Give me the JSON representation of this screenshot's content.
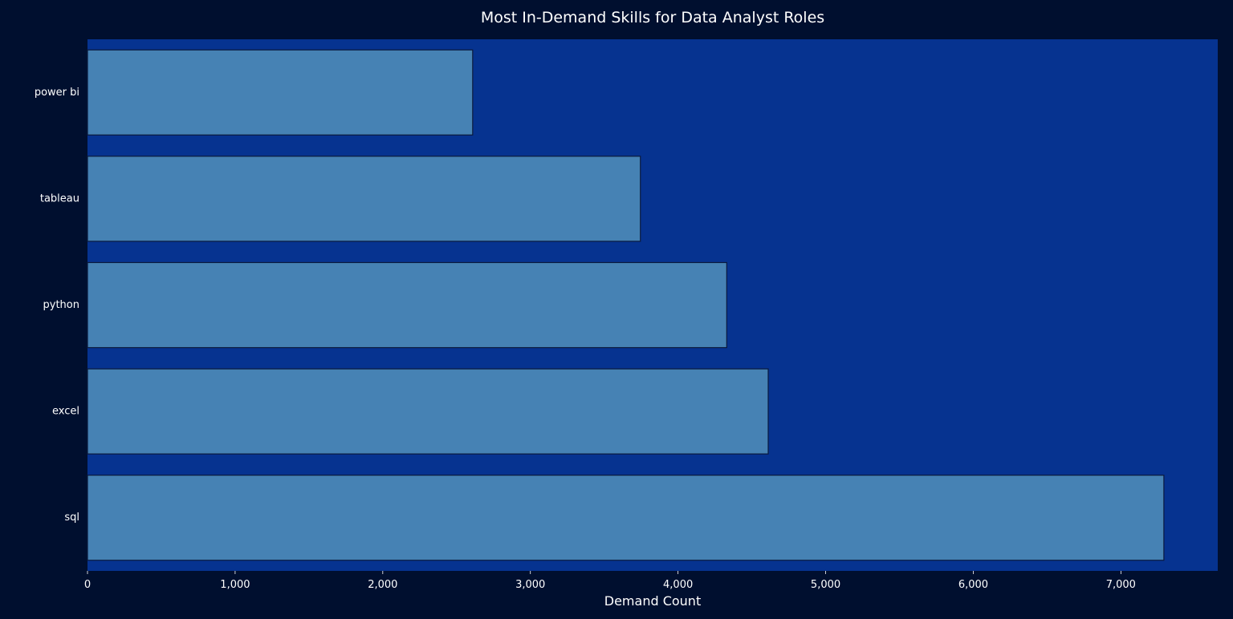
{
  "chart_data": {
    "type": "bar",
    "orientation": "horizontal",
    "title": "Most In-Demand Skills for Data Analyst Roles",
    "xlabel": "Demand Count",
    "ylabel": "",
    "categories": [
      "power bi",
      "tableau",
      "python",
      "excel",
      "sql"
    ],
    "values": [
      2609,
      3745,
      4330,
      4611,
      7291
    ],
    "xlim": [
      0,
      7656
    ],
    "xticks": [
      0,
      1000,
      2000,
      3000,
      4000,
      5000,
      6000,
      7000
    ],
    "xtick_labels": [
      "0",
      "1,000",
      "2,000",
      "3,000",
      "4,000",
      "5,000",
      "6,000",
      "7,000"
    ],
    "grid": false,
    "legend": "none",
    "colors": {
      "figure_background": "#000f2f",
      "plot_background": "#063390",
      "bar_fill": "#4682b4",
      "bar_edge": "#0b1a3d",
      "text": "#ffffff"
    }
  }
}
